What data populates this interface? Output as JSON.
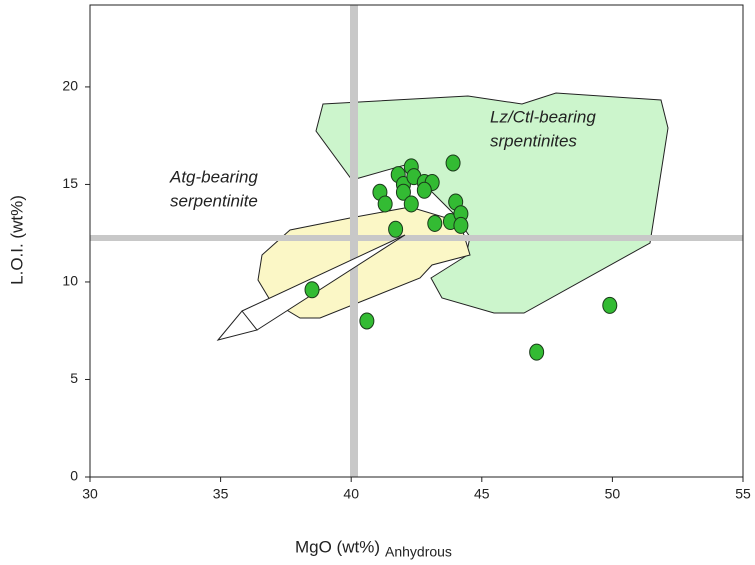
{
  "chart_data": {
    "type": "scatter",
    "x_label": "MgO (wt%)",
    "x_label_sub": "Anhydrous",
    "y_label": "L.O.I. (wt%)",
    "annotations": [
      "Atg-bearing",
      "serpentinite",
      "Lz/Ctl-bearing",
      "srpentinites"
    ],
    "series": [
      {
        "color": "#33bb33",
        "x": [
          38.5,
          40.6,
          41.7,
          41.1,
          41.3,
          41.8,
          42.0,
          42.0,
          42.3,
          42.4,
          42.3,
          42.8,
          43.1,
          42.8,
          43.2,
          43.9,
          44.0,
          43.8,
          44.2,
          44.2,
          47.1,
          49.9
        ],
        "values": [
          9.6,
          8.0,
          12.7,
          14.6,
          14.0,
          15.5,
          15.0,
          14.6,
          15.9,
          15.4,
          14.0,
          15.1,
          15.1,
          14.7,
          13.0,
          16.1,
          14.1,
          13.1,
          13.5,
          12.9,
          6.4,
          8.8
        ]
      }
    ],
    "xlim": [
      30,
      55
    ],
    "xticks": [
      30,
      35,
      40,
      45,
      50,
      55
    ],
    "ylim": [
      0,
      24.2
    ],
    "yticks": [
      0,
      5,
      10,
      15,
      20
    ]
  }
}
